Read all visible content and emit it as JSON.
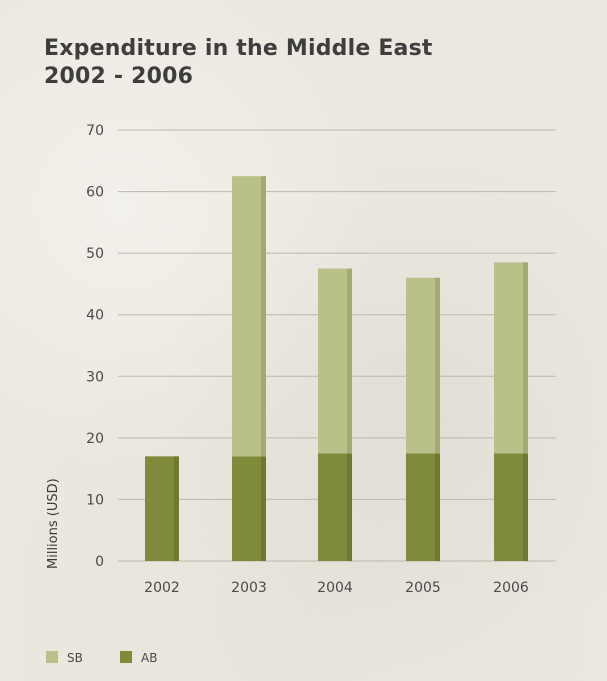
{
  "chart_data": {
    "type": "bar",
    "stacked": true,
    "title": "Expenditure in the Middle East",
    "subtitle": "2002 - 2006",
    "categories": [
      "2002",
      "2003",
      "2004",
      "2005",
      "2006"
    ],
    "series": [
      {
        "name": "AB",
        "values": [
          17,
          17,
          17.5,
          17.5,
          17.5
        ],
        "color": "#7f8a3a"
      },
      {
        "name": "SB",
        "values": [
          0,
          45.5,
          30,
          28.5,
          31
        ],
        "color": "#b9c188"
      }
    ],
    "xlabel": "",
    "ylabel": "Millions (USD)",
    "ylim": [
      0,
      70
    ],
    "yticks": [
      "0",
      "10",
      "20",
      "30",
      "40",
      "50",
      "60",
      "70"
    ],
    "grid": true,
    "legend_position": "bottom-left",
    "legend_order": [
      "SB",
      "AB"
    ]
  }
}
